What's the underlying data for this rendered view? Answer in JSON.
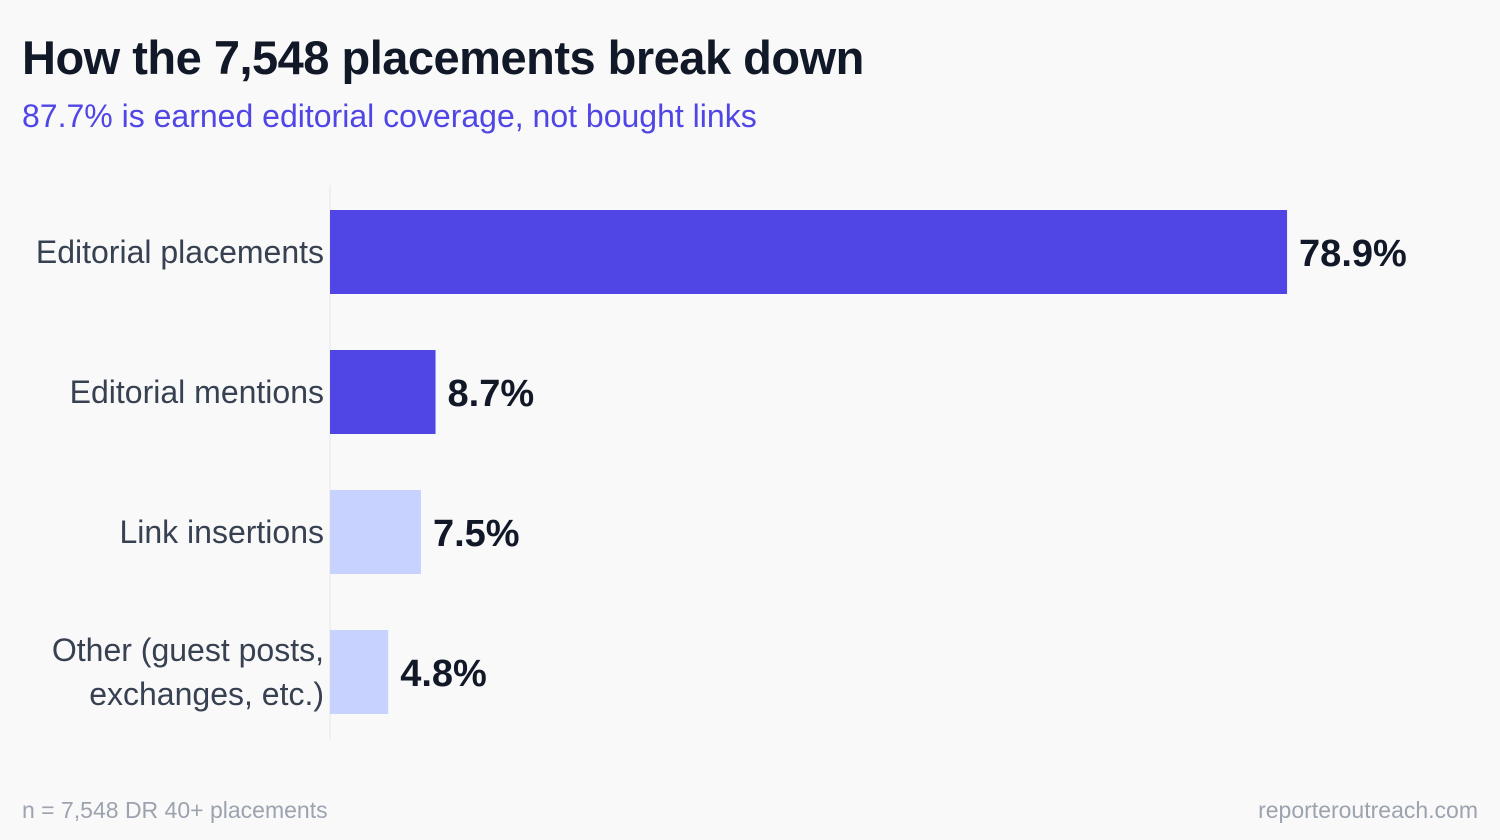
{
  "header": {
    "title": "How the 7,548 placements break down",
    "subtitle": "87.7% is earned editorial coverage, not bought links"
  },
  "footer": {
    "note": "n = 7,548 DR 40+ placements",
    "source": "reporteroutreach.com"
  },
  "colors": {
    "primary_bar": "#5046e5",
    "secondary_bar": "#c7d2fe",
    "title": "#111827",
    "subtitle": "#4f46e5",
    "label": "#374151",
    "footer": "#9ca3af",
    "axis": "#e5e7eb"
  },
  "chart_data": {
    "type": "bar",
    "orientation": "horizontal",
    "categories": [
      [
        "Editorial placements"
      ],
      [
        "Editorial mentions"
      ],
      [
        "Link insertions"
      ],
      [
        "Other (guest posts,",
        "exchanges, etc.)"
      ]
    ],
    "values": [
      78.9,
      8.7,
      7.5,
      4.8
    ],
    "value_labels": [
      "78.9%",
      "8.7%",
      "7.5%",
      "4.8%"
    ],
    "highlight": [
      true,
      true,
      false,
      false
    ],
    "xlim": [
      0,
      100
    ],
    "grid": false,
    "legend": "none"
  }
}
